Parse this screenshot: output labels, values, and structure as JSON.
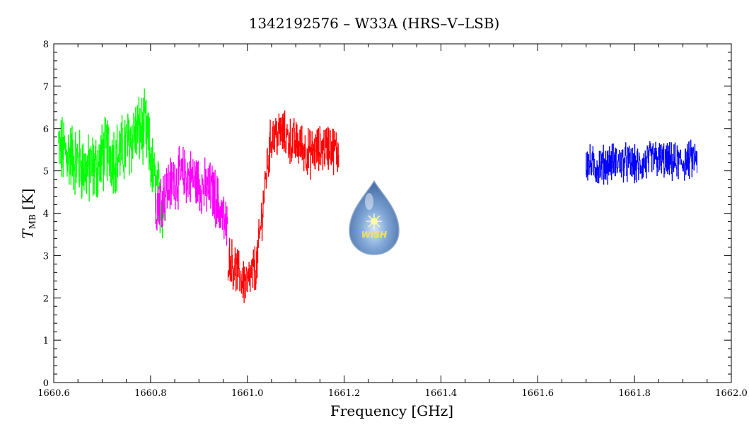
{
  "chart_data": {
    "type": "line",
    "title": "1342192576 – W33A (HRS–V–LSB)",
    "xlabel": "Frequency [GHz]",
    "ylabel_main": "T",
    "ylabel_sub": "MB",
    "ylabel_unit": "[K]",
    "xlim": [
      1660.6,
      1662.0
    ],
    "ylim": [
      0,
      8
    ],
    "xticks": [
      "1660.6",
      "1660.8",
      "1661.0",
      "1661.2",
      "1661.4",
      "1661.6",
      "1661.8",
      "1662.0"
    ],
    "yticks": [
      "0",
      "1",
      "2",
      "3",
      "4",
      "5",
      "6",
      "7",
      "8"
    ],
    "grid": false,
    "logo_text": "WISH",
    "series": [
      {
        "color": "#00ff00",
        "x": [
          1660.61,
          1660.63,
          1660.65,
          1660.67,
          1660.69,
          1660.71,
          1660.73,
          1660.75,
          1660.77,
          1660.79,
          1660.8,
          1660.81,
          1660.82,
          1660.83
        ],
        "values": [
          5.5,
          5.4,
          5.2,
          5.0,
          5.1,
          5.5,
          5.3,
          5.6,
          5.9,
          6.0,
          5.3,
          4.6,
          4.3,
          4.2
        ],
        "noise": 0.75
      },
      {
        "color": "#ff00ff",
        "x": [
          1660.81,
          1660.83,
          1660.85,
          1660.87,
          1660.89,
          1660.91,
          1660.93,
          1660.94,
          1660.95,
          1660.96
        ],
        "values": [
          4.2,
          4.5,
          4.8,
          4.9,
          4.8,
          4.6,
          4.5,
          4.2,
          3.9,
          3.5
        ],
        "noise": 0.6
      },
      {
        "color": "#ff0000",
        "x": [
          1660.96,
          1660.98,
          1661.0,
          1661.02,
          1661.03,
          1661.04,
          1661.05,
          1661.07,
          1661.09,
          1661.11,
          1661.13,
          1661.15,
          1661.17,
          1661.19
        ],
        "values": [
          3.0,
          2.6,
          2.3,
          2.8,
          3.9,
          5.0,
          5.8,
          5.9,
          5.7,
          5.6,
          5.4,
          5.5,
          5.6,
          5.4
        ],
        "noise": 0.5
      },
      {
        "color": "#0000ff",
        "x": [
          1661.7,
          1661.72,
          1661.75,
          1661.78,
          1661.81,
          1661.84,
          1661.87,
          1661.9,
          1661.93
        ],
        "values": [
          5.2,
          5.1,
          5.2,
          5.2,
          5.1,
          5.3,
          5.2,
          5.2,
          5.3
        ],
        "noise": 0.4
      }
    ]
  }
}
